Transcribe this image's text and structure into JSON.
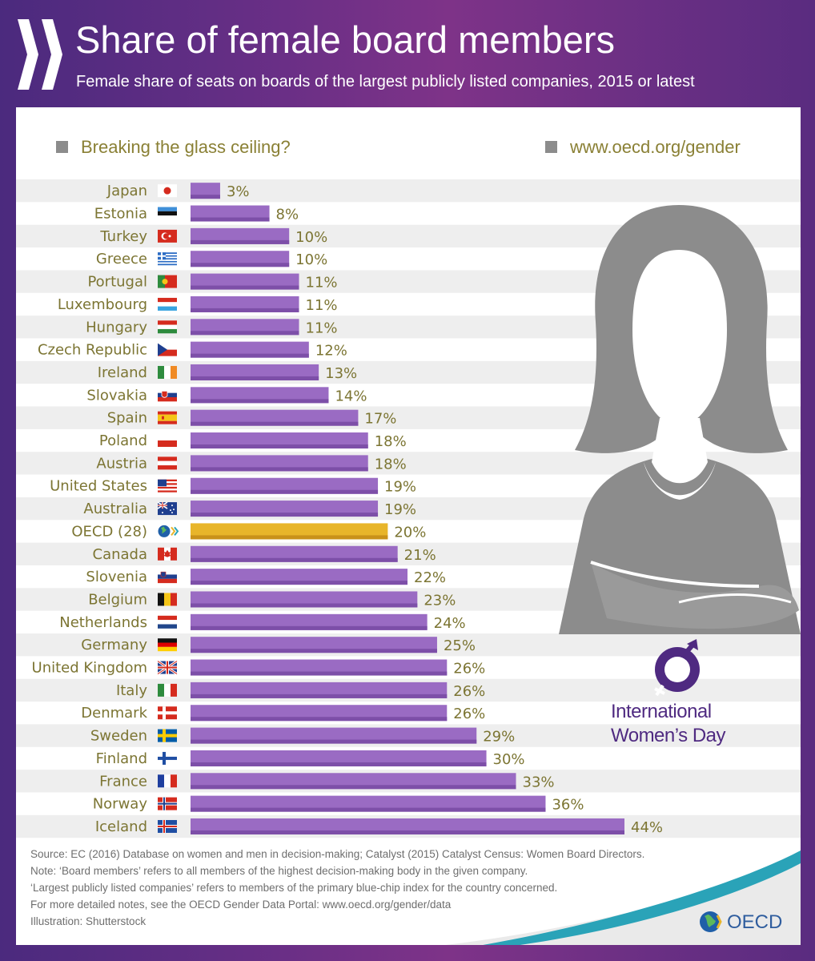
{
  "header": {
    "title": "Share of female board members",
    "subtitle": "Female share of seats on boards of the largest publicly listed companies, 2015 or latest"
  },
  "taglines": {
    "left": "Breaking the glass ceiling?",
    "right": "www.oecd.org/gender"
  },
  "colors": {
    "bar": "#9a6bc3",
    "bar_highlight": "#e8b52a",
    "label": "#7c7533",
    "row_stripe": "#eeeeee"
  },
  "chart_data": {
    "type": "bar",
    "orientation": "horizontal",
    "title": "Share of female board members",
    "categories": [
      "Japan",
      "Estonia",
      "Turkey",
      "Greece",
      "Portugal",
      "Luxembourg",
      "Hungary",
      "Czech Republic",
      "Ireland",
      "Slovakia",
      "Spain",
      "Poland",
      "Austria",
      "United States",
      "Australia",
      "OECD (28)",
      "Canada",
      "Slovenia",
      "Belgium",
      "Netherlands",
      "Germany",
      "United Kingdom",
      "Italy",
      "Denmark",
      "Sweden",
      "Finland",
      "France",
      "Norway",
      "Iceland"
    ],
    "values": [
      3,
      8,
      10,
      10,
      11,
      11,
      11,
      12,
      13,
      14,
      17,
      18,
      18,
      19,
      19,
      20,
      21,
      22,
      23,
      24,
      25,
      26,
      26,
      26,
      29,
      30,
      33,
      36,
      44
    ],
    "value_labels": [
      "3%",
      "8%",
      "10%",
      "10%",
      "11%",
      "11%",
      "11%",
      "12%",
      "13%",
      "14%",
      "17%",
      "18%",
      "18%",
      "19%",
      "19%",
      "20%",
      "21%",
      "22%",
      "23%",
      "24%",
      "25%",
      "26%",
      "26%",
      "26%",
      "29%",
      "30%",
      "33%",
      "36%",
      "44%"
    ],
    "highlight": "OECD (28)",
    "xlim": [
      0,
      44
    ],
    "flags": [
      "japan-flag",
      "estonia-flag",
      "turkey-flag",
      "greece-flag",
      "portugal-flag",
      "luxembourg-flag",
      "hungary-flag",
      "czech-flag",
      "ireland-flag",
      "slovakia-flag",
      "spain-flag",
      "poland-flag",
      "austria-flag",
      "usa-flag",
      "australia-flag",
      "oecd-globe-icon",
      "canada-flag",
      "slovenia-flag",
      "belgium-flag",
      "netherlands-flag",
      "germany-flag",
      "uk-flag",
      "italy-flag",
      "denmark-flag",
      "sweden-flag",
      "finland-flag",
      "france-flag",
      "norway-flag",
      "iceland-flag"
    ]
  },
  "iwd": {
    "line1": "International",
    "line2": "Women’s Day"
  },
  "source": {
    "lines": [
      "Source: EC (2016) Database on women and men in decision-making; Catalyst (2015) Catalyst Census: Women Board Directors.",
      "Note: ‘Board members’ refers to all members of the highest decision-making body in the given company.",
      "‘Largest publicly listed companies’ refers to members of the primary blue-chip index for the country concerned.",
      "For more detailed notes, see the OECD Gender Data Portal: www.oecd.org/gender/data",
      "Illustration: Shutterstock"
    ]
  },
  "logo": {
    "text": "OECD"
  }
}
